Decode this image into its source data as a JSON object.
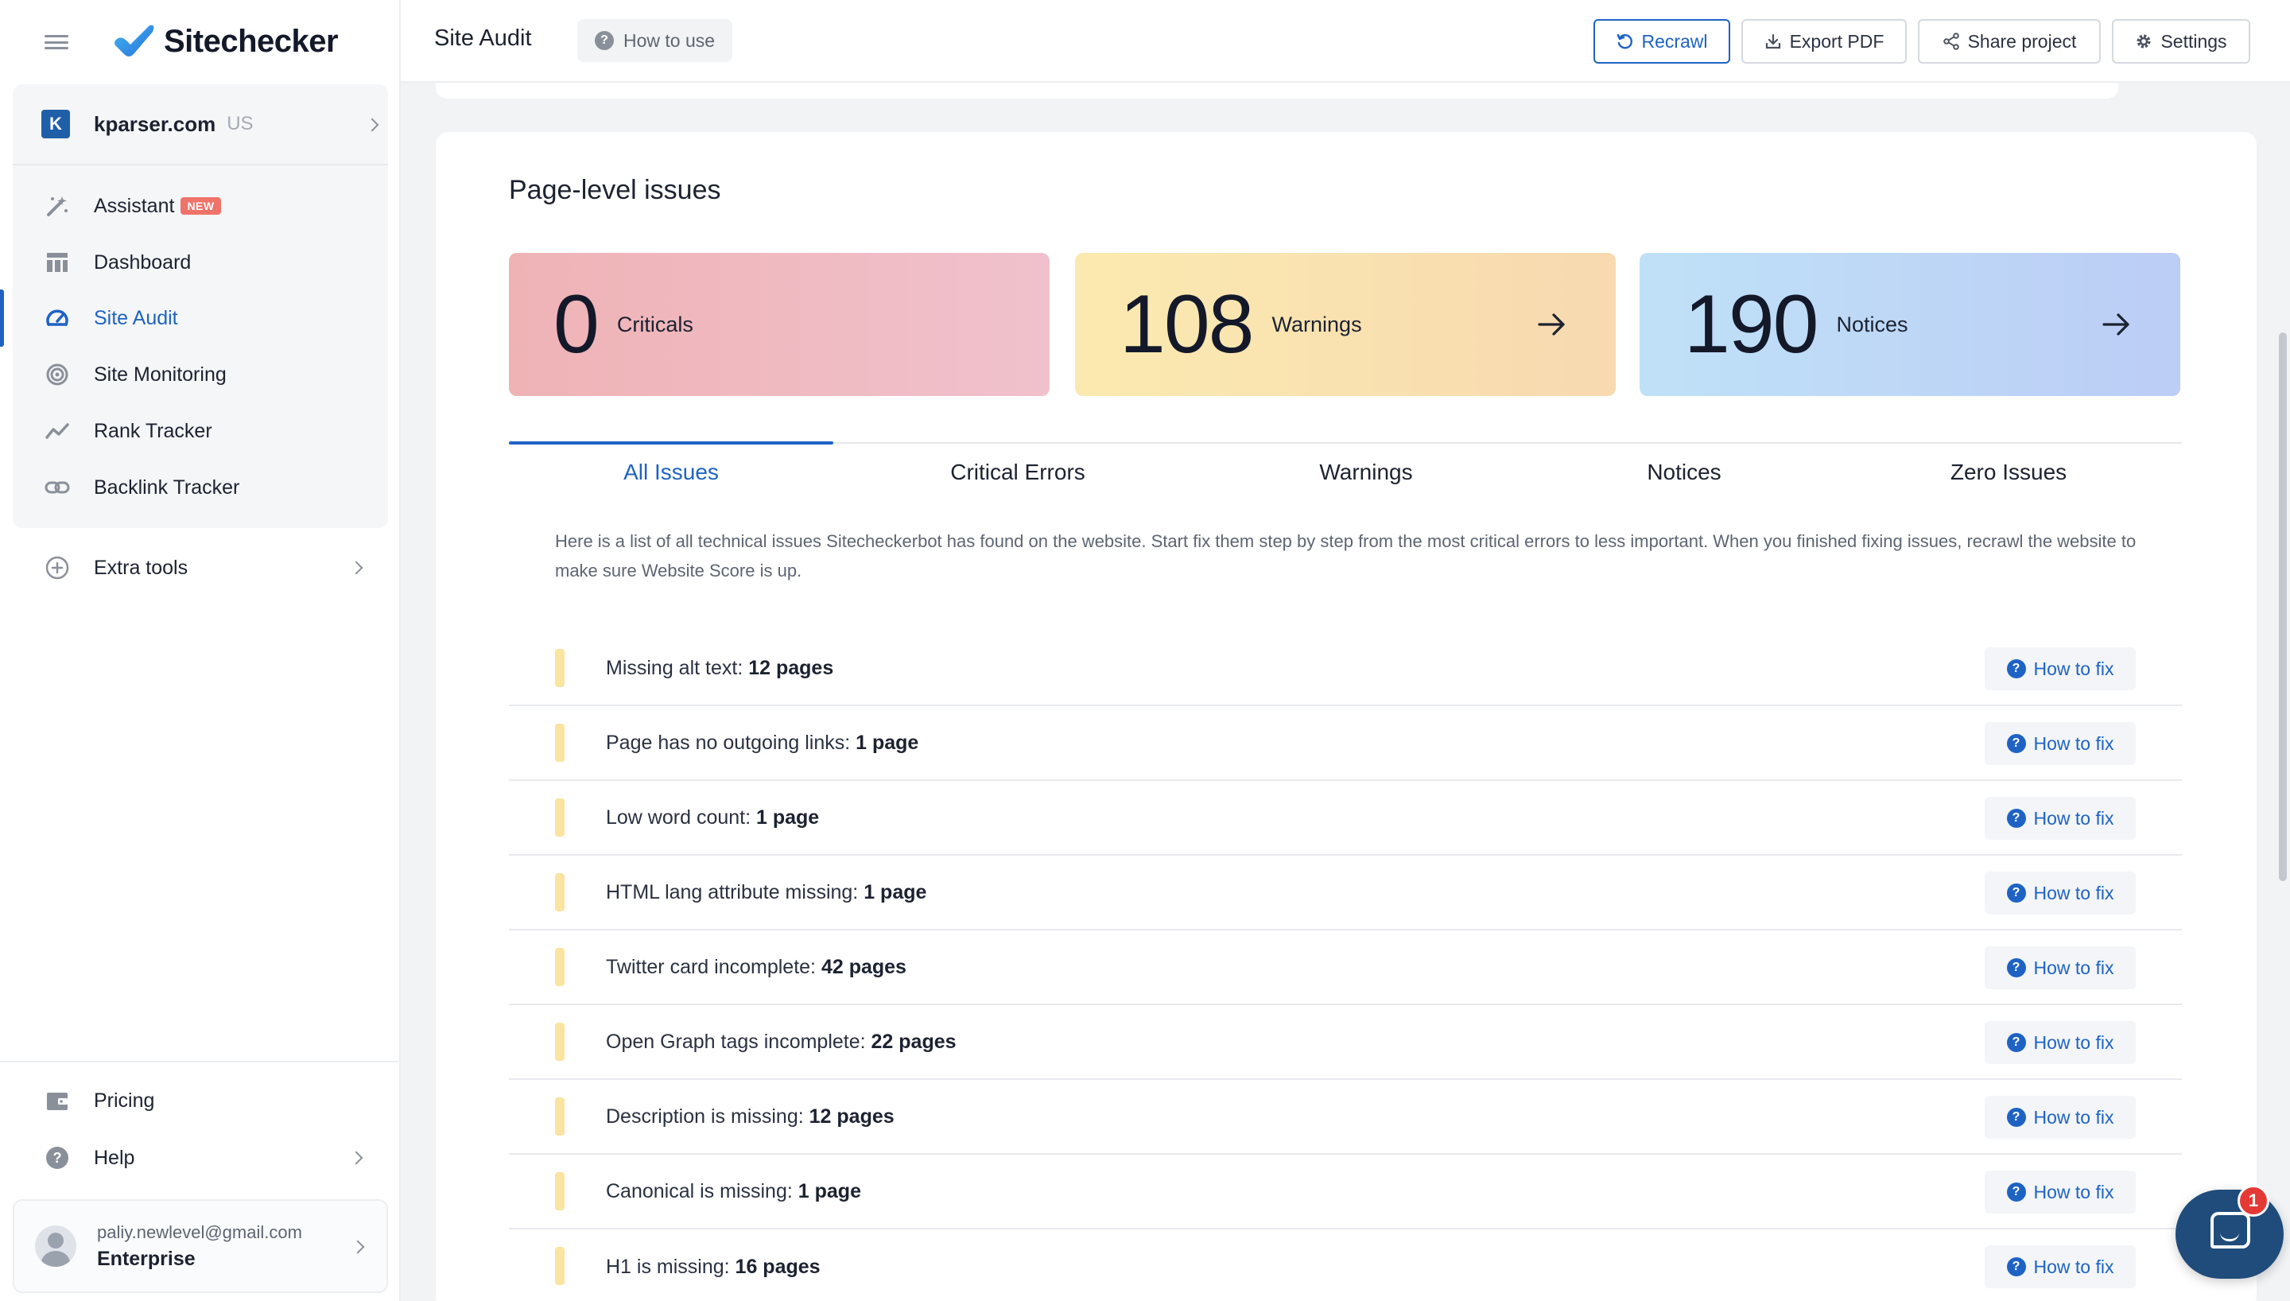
{
  "sidebar": {
    "logo_text": "Sitechecker",
    "project": {
      "badge": "K",
      "name": "kparser.com",
      "region": "US"
    },
    "nav": [
      {
        "label": "Assistant",
        "badge": "NEW",
        "icon": "magic-wand-icon"
      },
      {
        "label": "Dashboard",
        "icon": "dashboard-icon"
      },
      {
        "label": "Site Audit",
        "icon": "gauge-icon",
        "active": true
      },
      {
        "label": "Site Monitoring",
        "icon": "radar-icon"
      },
      {
        "label": "Rank Tracker",
        "icon": "trend-line-icon"
      },
      {
        "label": "Backlink Tracker",
        "icon": "link-icon"
      }
    ],
    "extra_tools": "Extra tools",
    "pricing": "Pricing",
    "help": "Help",
    "user": {
      "email": "paliy.newlevel@gmail.com",
      "plan": "Enterprise"
    }
  },
  "header": {
    "title": "Site Audit",
    "how_to_use": "How to use",
    "buttons": {
      "recrawl": "Recrawl",
      "export_pdf": "Export PDF",
      "share": "Share project",
      "settings": "Settings"
    }
  },
  "main": {
    "section_title": "Page-level issues",
    "stats": {
      "criticals": {
        "value": "0",
        "label": "Criticals"
      },
      "warnings": {
        "value": "108",
        "label": "Warnings"
      },
      "notices": {
        "value": "190",
        "label": "Notices"
      }
    },
    "tabs": [
      "All Issues",
      "Critical Errors",
      "Warnings",
      "Notices",
      "Zero Issues"
    ],
    "description": "Here is a list of all technical issues Sitecheckerbot has found on the website. Start fix them step by step from the most critical errors to less important. When you finished fixing issues, recrawl the website to make sure Website Score is up.",
    "fix_label": "How to fix",
    "issues": [
      {
        "text": "Missing alt text:",
        "count": "12 pages"
      },
      {
        "text": "Page has no outgoing links:",
        "count": "1 page"
      },
      {
        "text": "Low word count:",
        "count": "1 page"
      },
      {
        "text": "HTML lang attribute missing:",
        "count": "1 page"
      },
      {
        "text": "Twitter card incomplete:",
        "count": "42 pages"
      },
      {
        "text": "Open Graph tags incomplete:",
        "count": "22 pages"
      },
      {
        "text": "Description is missing:",
        "count": "12 pages"
      },
      {
        "text": "Canonical is missing:",
        "count": "1 page"
      },
      {
        "text": "H1 is missing:",
        "count": "16 pages"
      }
    ]
  },
  "chat": {
    "unread": "1"
  },
  "colors": {
    "accent": "#1e63c4",
    "warning_marker": "#fbe3a0"
  }
}
